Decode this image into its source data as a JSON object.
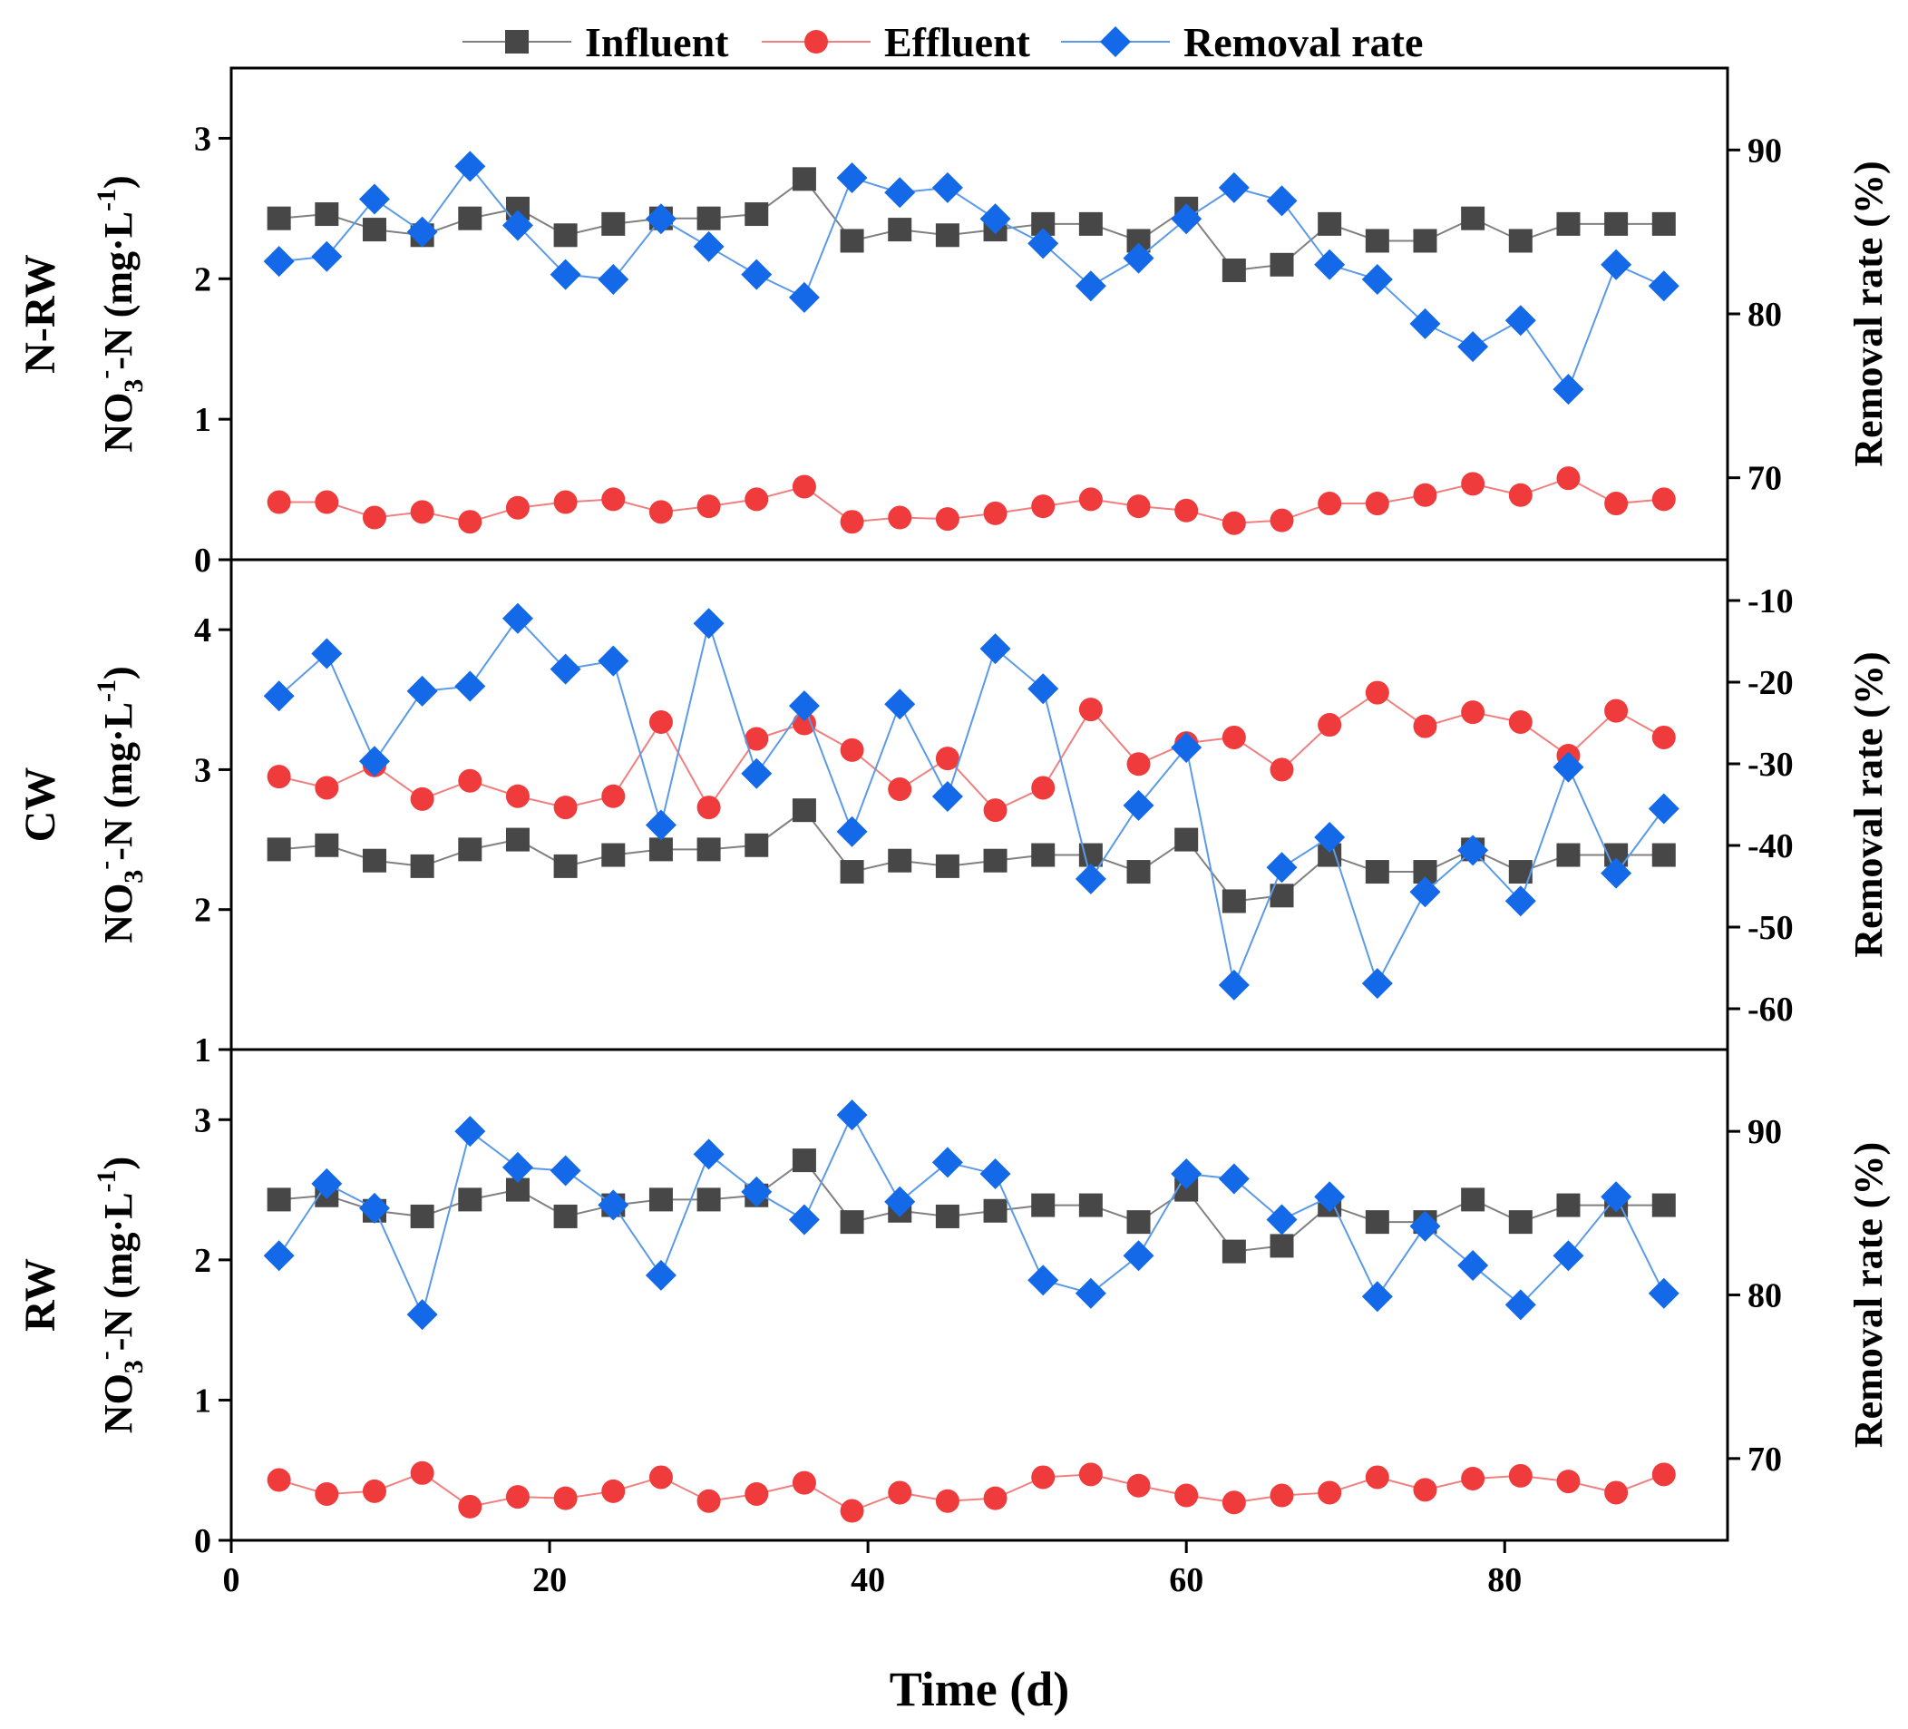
{
  "chart_data": {
    "type": "line",
    "legend": {
      "position": "top",
      "entries": [
        {
          "name": "Influent",
          "marker": "square",
          "color": "#474747",
          "line_color": "#808080"
        },
        {
          "name": "Effluent",
          "marker": "circle",
          "color": "#ef3b3b",
          "line_color": "#f08080"
        },
        {
          "name": "Removal rate",
          "marker": "diamond",
          "color": "#1469e8",
          "line_color": "#5a9ae8"
        }
      ]
    },
    "xlabel": "Time (d)",
    "xlim": [
      0,
      94
    ],
    "xticks": [
      0,
      20,
      40,
      60,
      80
    ],
    "x": [
      3,
      6,
      9,
      12,
      15,
      18,
      21,
      24,
      27,
      30,
      33,
      36,
      39,
      42,
      45,
      48,
      51,
      54,
      57,
      60,
      63,
      66,
      69,
      72,
      75,
      78,
      81,
      84,
      87,
      90
    ],
    "panels": [
      {
        "name": "N-RW",
        "ylabel_left": "NO3⁻-N (mg·L⁻¹)",
        "ylabel_right": "Removal rate (%)",
        "ylim_left": [
          0,
          3.5
        ],
        "yticks_left": [
          0,
          1,
          2,
          3
        ],
        "ylim_right": [
          65,
          95
        ],
        "yticks_right": [
          70,
          80,
          90
        ],
        "series": [
          {
            "name": "Influent",
            "axis": "left",
            "values": [
              2.43,
              2.46,
              2.35,
              2.31,
              2.43,
              2.5,
              2.31,
              2.39,
              2.43,
              2.43,
              2.46,
              2.71,
              2.27,
              2.35,
              2.31,
              2.35,
              2.39,
              2.39,
              2.27,
              2.5,
              2.06,
              2.1,
              2.39,
              2.27,
              2.27,
              2.43,
              2.27,
              2.39,
              2.39,
              2.39
            ]
          },
          {
            "name": "Effluent",
            "axis": "left",
            "values": [
              0.41,
              0.41,
              0.3,
              0.34,
              0.27,
              0.37,
              0.41,
              0.43,
              0.34,
              0.38,
              0.43,
              0.52,
              0.27,
              0.3,
              0.29,
              0.33,
              0.38,
              0.43,
              0.38,
              0.35,
              0.26,
              0.28,
              0.4,
              0.4,
              0.46,
              0.54,
              0.46,
              0.58,
              0.4,
              0.43
            ]
          },
          {
            "name": "Removal rate",
            "axis": "right",
            "values": [
              83.2,
              83.5,
              87.0,
              85.0,
              89.0,
              85.4,
              82.4,
              82.1,
              85.8,
              84.1,
              82.4,
              81.0,
              88.3,
              87.4,
              87.7,
              85.8,
              84.3,
              81.7,
              83.4,
              85.8,
              87.7,
              86.9,
              83.0,
              82.1,
              79.4,
              78.0,
              79.6,
              75.4,
              83.0,
              81.7
            ]
          }
        ]
      },
      {
        "name": "CW",
        "ylabel_left": "NO3⁻-N (mg·L⁻¹)",
        "ylabel_right": "Removal rate (%)",
        "ylim_left": [
          1,
          4.5
        ],
        "yticks_left": [
          1,
          2,
          3,
          4
        ],
        "ylim_right": [
          -65,
          -5
        ],
        "yticks_right": [
          -60,
          -50,
          -40,
          -30,
          -20,
          -10
        ],
        "series": [
          {
            "name": "Influent",
            "axis": "left",
            "values": [
              2.43,
              2.46,
              2.35,
              2.31,
              2.43,
              2.5,
              2.31,
              2.39,
              2.43,
              2.43,
              2.46,
              2.71,
              2.27,
              2.35,
              2.31,
              2.35,
              2.39,
              2.39,
              2.27,
              2.5,
              2.06,
              2.1,
              2.39,
              2.27,
              2.27,
              2.43,
              2.27,
              2.39,
              2.39,
              2.39
            ]
          },
          {
            "name": "Effluent",
            "axis": "left",
            "values": [
              2.95,
              2.87,
              3.03,
              2.79,
              2.92,
              2.81,
              2.73,
              2.81,
              3.34,
              2.73,
              3.22,
              3.33,
              3.14,
              2.86,
              3.08,
              2.71,
              2.87,
              3.43,
              3.04,
              3.19,
              3.23,
              3.0,
              3.32,
              3.55,
              3.31,
              3.41,
              3.34,
              3.1,
              3.42,
              3.23
            ]
          },
          {
            "name": "Removal rate",
            "axis": "right",
            "values": [
              -21.7,
              -16.5,
              -29.7,
              -21.1,
              -20.5,
              -12.2,
              -18.4,
              -17.4,
              -37.5,
              -12.8,
              -31.2,
              -22.9,
              -38.3,
              -22.7,
              -34.0,
              -15.9,
              -20.8,
              -44.1,
              -35.1,
              -28.0,
              -57.1,
              -42.7,
              -39.0,
              -56.9,
              -45.7,
              -40.6,
              -46.8,
              -30.4,
              -43.4,
              -35.5
            ]
          }
        ]
      },
      {
        "name": "RW",
        "ylabel_left": "NO3⁻-N (mg·L⁻¹)",
        "ylabel_right": "Removal rate (%)",
        "ylim_left": [
          0,
          3.5
        ],
        "yticks_left": [
          0,
          1,
          2,
          3
        ],
        "ylim_right": [
          65,
          95
        ],
        "yticks_right": [
          70,
          80,
          90
        ],
        "series": [
          {
            "name": "Influent",
            "axis": "left",
            "values": [
              2.43,
              2.46,
              2.35,
              2.31,
              2.43,
              2.5,
              2.31,
              2.39,
              2.43,
              2.43,
              2.46,
              2.71,
              2.27,
              2.35,
              2.31,
              2.35,
              2.39,
              2.39,
              2.27,
              2.5,
              2.06,
              2.1,
              2.39,
              2.27,
              2.27,
              2.43,
              2.27,
              2.39,
              2.39,
              2.39
            ]
          },
          {
            "name": "Effluent",
            "axis": "left",
            "values": [
              0.43,
              0.33,
              0.35,
              0.48,
              0.24,
              0.31,
              0.3,
              0.35,
              0.45,
              0.28,
              0.33,
              0.41,
              0.21,
              0.34,
              0.28,
              0.3,
              0.45,
              0.47,
              0.39,
              0.32,
              0.27,
              0.32,
              0.34,
              0.45,
              0.36,
              0.44,
              0.46,
              0.42,
              0.34,
              0.47
            ]
          },
          {
            "name": "Removal rate",
            "axis": "right",
            "values": [
              82.4,
              86.8,
              85.3,
              78.8,
              90.0,
              87.8,
              87.6,
              85.5,
              81.2,
              88.6,
              86.3,
              84.6,
              91.0,
              85.7,
              88.1,
              87.4,
              80.9,
              80.1,
              82.4,
              87.4,
              87.1,
              84.6,
              86.0,
              79.9,
              84.2,
              81.8,
              79.4,
              82.4,
              86.0,
              80.1
            ]
          }
        ]
      }
    ]
  }
}
